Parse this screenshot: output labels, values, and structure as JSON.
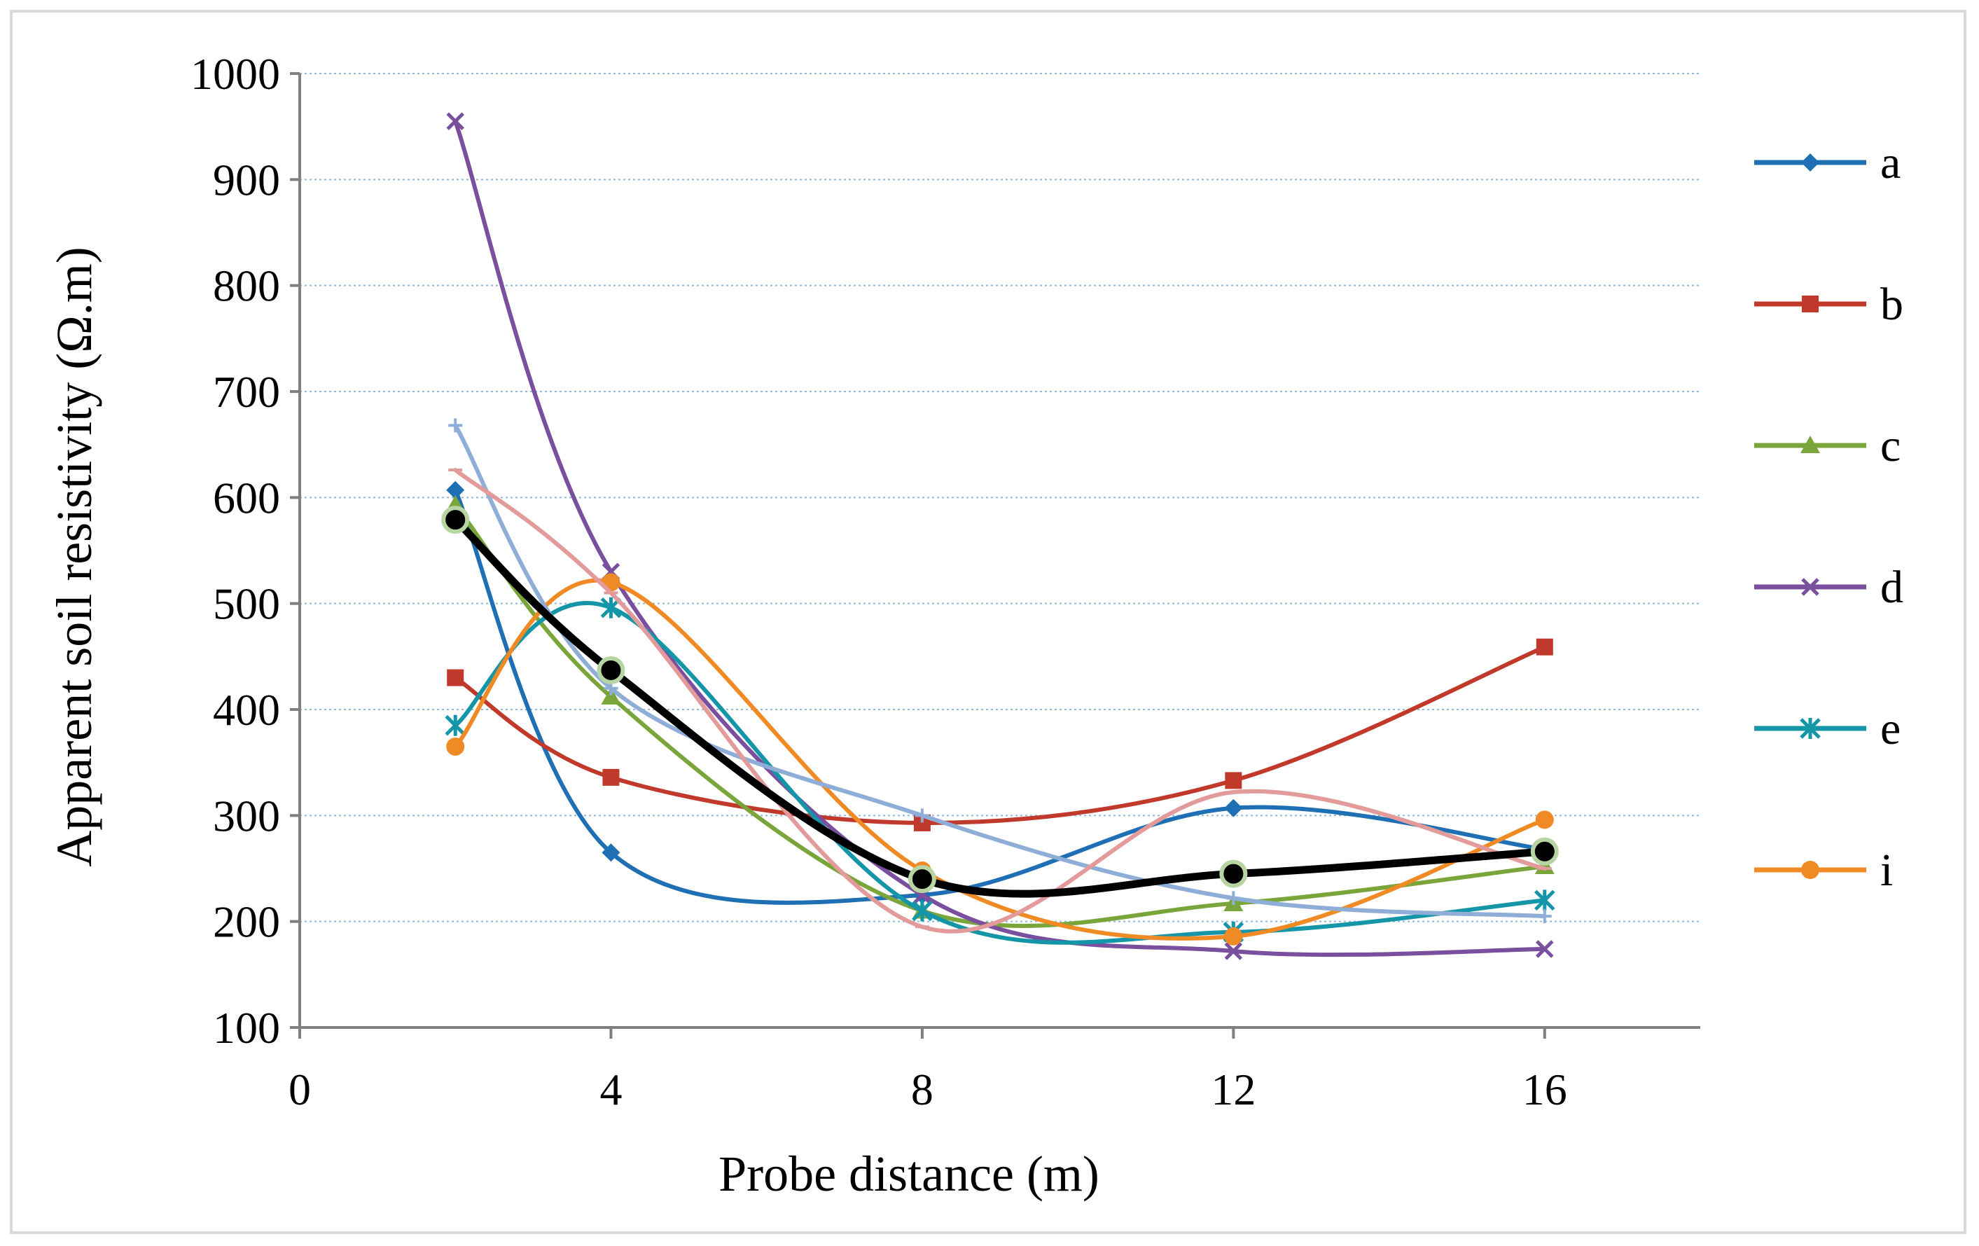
{
  "chart_data": {
    "type": "line",
    "smoothed": true,
    "title": "",
    "xlabel": "Probe distance (m)",
    "ylabel": "Apparent soil resistivity (Ω.m)",
    "xlim": [
      0,
      18
    ],
    "ylim": [
      100,
      1000
    ],
    "xticks": [
      0,
      4,
      8,
      12,
      16
    ],
    "yticks": [
      100,
      200,
      300,
      400,
      500,
      600,
      700,
      800,
      900,
      1000
    ],
    "grid": "horizontal dotted",
    "legend_position": "right",
    "x": [
      2,
      4,
      8,
      12,
      16
    ],
    "series": [
      {
        "name": "a",
        "color": "#1f6fb4",
        "marker": "diamond",
        "legend": true,
        "values": [
          607,
          265,
          225,
          307,
          268
        ]
      },
      {
        "name": "b",
        "color": "#c0392b",
        "marker": "square",
        "legend": true,
        "values": [
          430,
          336,
          293,
          333,
          459
        ]
      },
      {
        "name": "c",
        "color": "#7aa53a",
        "marker": "triangle",
        "legend": true,
        "values": [
          593,
          412,
          210,
          217,
          252
        ]
      },
      {
        "name": "d",
        "color": "#7a4f9e",
        "marker": "x",
        "legend": true,
        "values": [
          955,
          530,
          225,
          172,
          174
        ]
      },
      {
        "name": "e",
        "color": "#1596a8",
        "marker": "asterisk",
        "legend": true,
        "values": [
          385,
          496,
          210,
          190,
          220
        ]
      },
      {
        "name": "i",
        "color": "#f08a24",
        "marker": "circle",
        "legend": true,
        "values": [
          365,
          520,
          248,
          186,
          296
        ]
      },
      {
        "name": "",
        "color": "#8eaed8",
        "marker": "plus",
        "legend": false,
        "values": [
          668,
          420,
          300,
          222,
          205
        ]
      },
      {
        "name": "",
        "color": "#e39a9a",
        "marker": "dash",
        "legend": false,
        "values": [
          626,
          510,
          195,
          322,
          250
        ]
      },
      {
        "name": "",
        "color": "#000000",
        "marker": "ringed-circle",
        "legend": false,
        "values": [
          579,
          437,
          240,
          245,
          266
        ]
      }
    ]
  }
}
